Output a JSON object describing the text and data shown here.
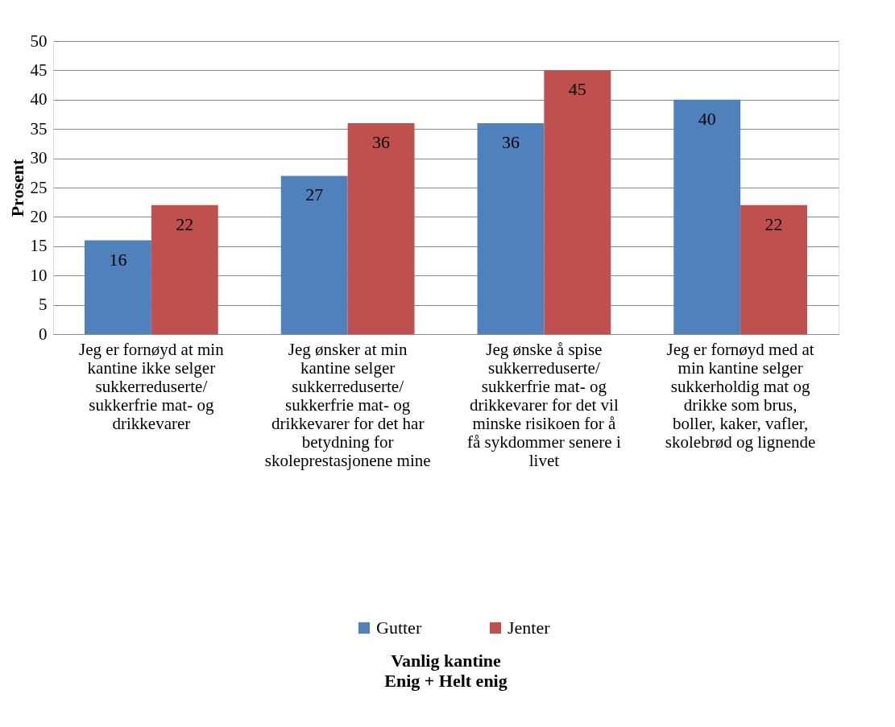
{
  "chart_data": {
    "type": "bar",
    "title": "Vanlig kantine",
    "subtitle": "Enig + Helt enig",
    "ylabel": "Prosent",
    "categories": [
      "Jeg er fornøyd at min kantine ikke selger sukkerreduserte/ sukkerfrie mat- og drikkevarer",
      "Jeg ønsker at min kantine selger sukkerreduserte/ sukkerfrie mat- og drikkevarer for det har betydning for skoleprestasjonene mine",
      "Jeg ønske å spise sukkerreduserte/ sukkerfrie mat- og drikkevarer for det vil minske risikoen for å få sykdommer senere i livet",
      "Jeg er fornøyd med at min kantine selger sukkerholdig mat og drikke som brus, boller, kaker, vafler, skolebrød og lignende"
    ],
    "series": [
      {
        "name": "Gutter",
        "color": "#4f81bd",
        "values": [
          16,
          27,
          36,
          40
        ]
      },
      {
        "name": "Jenter",
        "color": "#c0504d",
        "values": [
          22,
          36,
          45,
          22
        ]
      }
    ],
    "ylim": [
      0,
      50
    ],
    "yticks": [
      0,
      5,
      10,
      15,
      20,
      25,
      30,
      35,
      40,
      45,
      50
    ],
    "grid": "y",
    "legend": "bottom",
    "data_labels": true
  }
}
